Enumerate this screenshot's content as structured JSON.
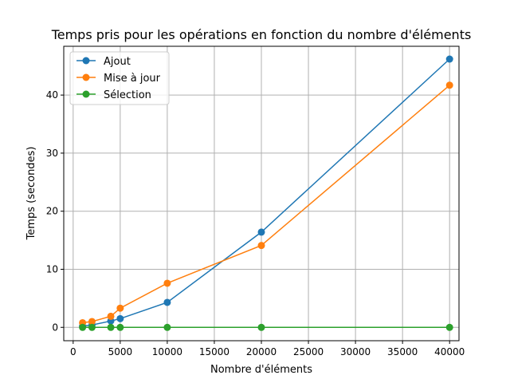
{
  "chart_data": {
    "type": "line",
    "title": "Temps pris pour les opérations en fonction du nombre d'éléments",
    "xlabel": "Nombre d'éléments",
    "ylabel": "Temps (secondes)",
    "xlim": [
      -1000,
      41000
    ],
    "ylim": [
      -2.3,
      48.4
    ],
    "xticks": [
      0,
      5000,
      10000,
      15000,
      20000,
      25000,
      30000,
      35000,
      40000
    ],
    "yticks": [
      0,
      10,
      20,
      30,
      40
    ],
    "grid": true,
    "legend_position": "top-left",
    "x": [
      1000,
      2000,
      4000,
      5000,
      10000,
      20000,
      40000
    ],
    "series": [
      {
        "name": "Ajout",
        "color": "#1f77b4",
        "values": [
          0.2,
          0.4,
          1.1,
          1.5,
          4.3,
          16.4,
          46.2
        ]
      },
      {
        "name": "Mise à jour",
        "color": "#ff7f0e",
        "values": [
          0.8,
          1.0,
          1.9,
          3.3,
          7.6,
          14.1,
          41.7
        ]
      },
      {
        "name": "Sélection",
        "color": "#2ca02c",
        "values": [
          0.0,
          0.0,
          0.0,
          0.0,
          0.0,
          0.0,
          0.0
        ]
      }
    ]
  }
}
